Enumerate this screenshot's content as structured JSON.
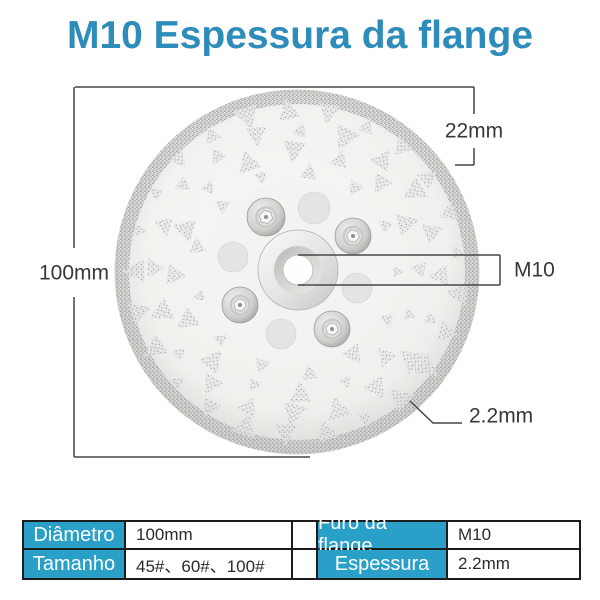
{
  "title": "M10 Espessura da flange",
  "diagram": {
    "dimension_labels": {
      "diameter": "100mm",
      "flange_height": "22mm",
      "flange_bore": "M10",
      "thickness": "2.2mm"
    }
  },
  "spec_table": {
    "rows": [
      {
        "label1": "Diâmetro",
        "value1": "100mm",
        "label2": "Furo da flange",
        "value2": "M10"
      },
      {
        "label1": "Tamanho",
        "value1": "45#、60#、100#",
        "label2": "Espessura",
        "value2": "2.2mm"
      }
    ]
  },
  "colors": {
    "title_text": "#2e8cba",
    "table_header_bg": "#2aa0c8",
    "table_header_text": "#ffffff",
    "table_border": "#1c1c1c",
    "annotation_line": "#474747",
    "annotation_text": "#383838"
  }
}
